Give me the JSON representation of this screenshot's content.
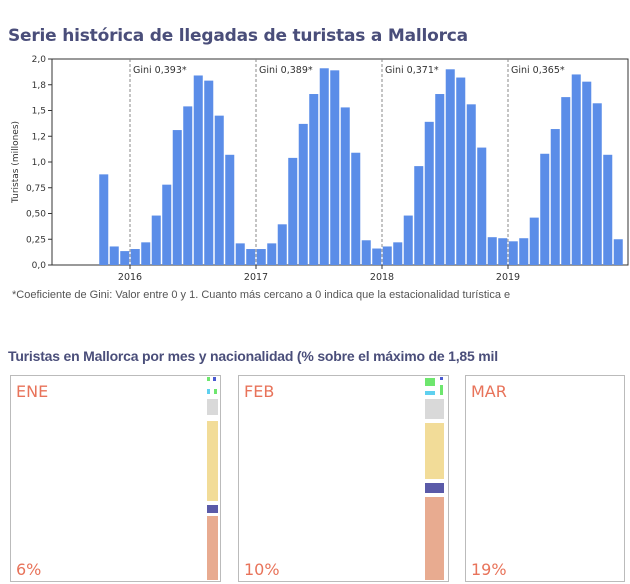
{
  "title_1": "Serie histórica de llegadas de turistas a Mallorca",
  "note": "*Coeficiente de Gini: Valor entre 0 y 1. Cuanto más cercano a 0 indica que la estacionalidad turística e",
  "title_2": "Turistas en Mallorca por mes y nacionalidad (% sobre el máximo de 1,85 mil",
  "chart_data": {
    "type": "bar",
    "ylabel": "Turistas (millones)",
    "ylim": [
      0,
      2.0
    ],
    "yticks": [
      "0,0",
      "0,25",
      "0,50",
      "0,75",
      "1,0",
      "1,2",
      "1,5",
      "1,8",
      "2,0"
    ],
    "xticks": [
      "2016",
      "2017",
      "2018",
      "2019"
    ],
    "bar_color": "#5b8de8",
    "start_month": "2015-10",
    "values": [
      0.88,
      0.18,
      0.135,
      0.155,
      0.22,
      0.48,
      0.78,
      1.31,
      1.54,
      1.84,
      1.79,
      1.45,
      1.07,
      0.21,
      0.155,
      0.155,
      0.21,
      0.395,
      1.04,
      1.37,
      1.66,
      1.91,
      1.89,
      1.53,
      1.09,
      0.24,
      0.16,
      0.18,
      0.22,
      0.48,
      0.96,
      1.39,
      1.66,
      1.9,
      1.82,
      1.56,
      1.14,
      0.27,
      0.26,
      0.23,
      0.26,
      0.46,
      1.08,
      1.32,
      1.63,
      1.85,
      1.78,
      1.57,
      1.07,
      0.25
    ],
    "annotations": [
      "Gini 0,393*",
      "Gini 0,389*",
      "Gini 0,371*",
      "Gini 0,365*"
    ]
  },
  "panels": [
    {
      "month": "ENE",
      "pct": "6%"
    },
    {
      "month": "FEB",
      "pct": "10%"
    },
    {
      "month": "MAR",
      "pct": "19%"
    }
  ],
  "colors": {
    "salmon": "#e8ab90",
    "navy": "#5a5aa8",
    "yellow": "#f2dc98",
    "gray": "#d9d9d9",
    "cyan": "#5fd0ef",
    "green": "#6ee66e",
    "blue": "#4a5ad0",
    "text": "#e8735a"
  }
}
